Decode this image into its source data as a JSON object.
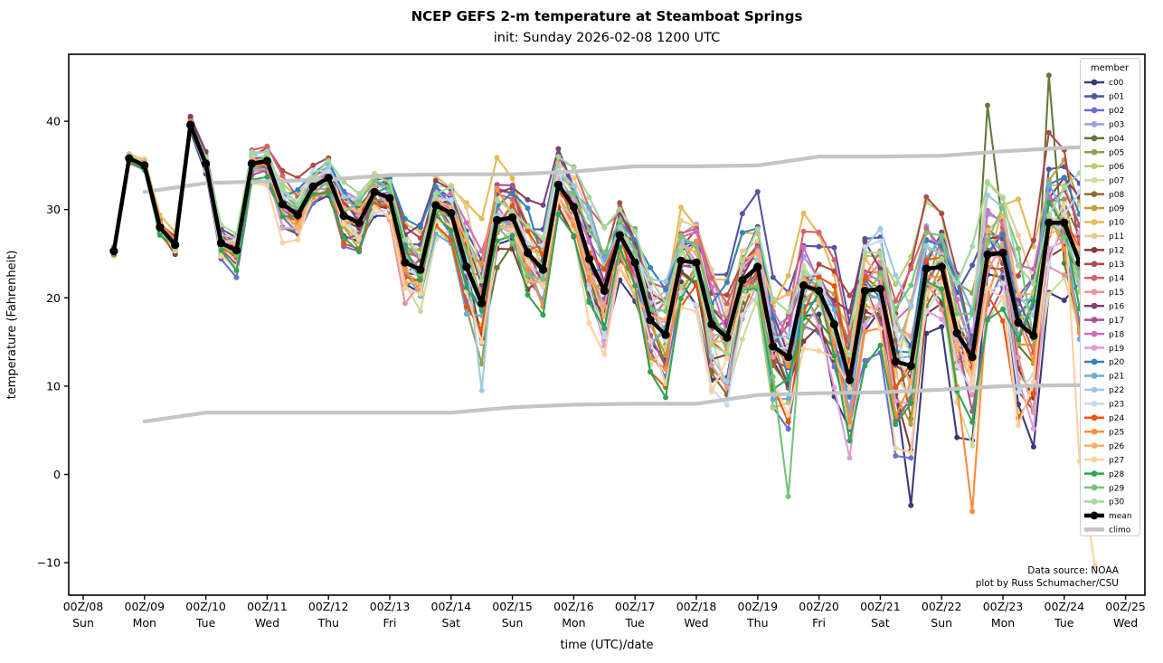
{
  "credits": [
    "Data source: NOAA",
    "plot by Russ Schumacher/CSU"
  ],
  "chart_data": {
    "type": "line",
    "title": "NCEP GEFS 2-m temperature at Steamboat Springs",
    "subtitle": "init: Sunday 2026-02-08 1200 UTC",
    "xlabel": "time (UTC)/date",
    "ylabel": "temperature (Fahrenheit)",
    "grid": false,
    "legend_position": "upper right",
    "legend_title": "member",
    "y_ticks": [
      -10,
      0,
      10,
      20,
      30,
      40
    ],
    "y_range": [
      -13.7,
      47.6
    ],
    "x_range_days": [
      7.76,
      25.32
    ],
    "x_ticks": [
      {
        "day": 8,
        "utc": "00Z/08",
        "dow": "Sun"
      },
      {
        "day": 9,
        "utc": "00Z/09",
        "dow": "Mon"
      },
      {
        "day": 10,
        "utc": "00Z/10",
        "dow": "Tue"
      },
      {
        "day": 11,
        "utc": "00Z/11",
        "dow": "Wed"
      },
      {
        "day": 12,
        "utc": "00Z/12",
        "dow": "Thu"
      },
      {
        "day": 13,
        "utc": "00Z/13",
        "dow": "Fri"
      },
      {
        "day": 14,
        "utc": "00Z/14",
        "dow": "Sat"
      },
      {
        "day": 15,
        "utc": "00Z/15",
        "dow": "Sun"
      },
      {
        "day": 16,
        "utc": "00Z/16",
        "dow": "Mon"
      },
      {
        "day": 17,
        "utc": "00Z/17",
        "dow": "Tue"
      },
      {
        "day": 18,
        "utc": "00Z/18",
        "dow": "Wed"
      },
      {
        "day": 19,
        "utc": "00Z/19",
        "dow": "Thu"
      },
      {
        "day": 20,
        "utc": "00Z/20",
        "dow": "Fri"
      },
      {
        "day": 21,
        "utc": "00Z/21",
        "dow": "Sat"
      },
      {
        "day": 22,
        "utc": "00Z/22",
        "dow": "Sun"
      },
      {
        "day": 23,
        "utc": "00Z/23",
        "dow": "Mon"
      },
      {
        "day": 24,
        "utc": "00Z/24",
        "dow": "Tue"
      },
      {
        "day": 25,
        "utc": "00Z/25",
        "dow": "Wed"
      }
    ],
    "time_start_day": 8.5,
    "time_step_days": 0.25,
    "mean": {
      "name": "mean",
      "color": "#000000",
      "values": [
        25.3,
        35.8,
        35.0,
        28.0,
        26.0,
        39.6,
        35.2,
        26.2,
        25.4,
        35.2,
        35.5,
        30.6,
        29.4,
        32.6,
        33.6,
        29.3,
        28.5,
        32.0,
        31.3,
        24.0,
        23.2,
        30.5,
        29.6,
        23.5,
        19.4,
        28.8,
        29.1,
        25.1,
        23.2,
        32.8,
        30.3,
        24.4,
        20.8,
        27.1,
        24.0,
        17.5,
        15.8,
        24.2,
        24.0,
        17.0,
        15.5,
        22.0,
        23.5,
        14.5,
        13.3,
        21.4,
        20.8,
        17.0,
        10.7,
        20.8,
        21.0,
        12.8,
        12.3,
        23.3,
        23.5,
        16.0,
        13.3,
        24.9,
        25.1,
        17.2,
        15.7,
        28.5,
        28.5,
        24.0,
        21.0
      ]
    },
    "climo": {
      "name": "climo",
      "color": "#c4c4c4",
      "days": [
        9,
        10,
        11,
        12,
        13,
        14,
        15,
        16,
        17,
        18,
        19,
        20,
        21,
        22,
        23,
        24,
        25
      ],
      "upper": [
        32.0,
        33.0,
        33.2,
        33.4,
        33.9,
        34.0,
        34.0,
        34.3,
        34.9,
        34.9,
        35.0,
        36.0,
        36.0,
        36.1,
        36.6,
        37.0,
        37.2
      ],
      "lower": [
        6.0,
        7.0,
        7.0,
        7.0,
        7.0,
        7.0,
        7.6,
        7.9,
        8.0,
        8.0,
        9.0,
        9.2,
        9.3,
        9.6,
        10.0,
        10.1,
        10.1
      ]
    },
    "ensemble_spread_halfwidth": [
      0.6,
      0.8,
      0.8,
      1.0,
      1.0,
      1.0,
      1.5,
      1.8,
      2.0,
      2.0,
      2.2,
      2.5,
      2.8,
      3.0,
      3.0,
      3.2,
      3.5,
      3.5,
      3.8,
      4.0,
      4.2,
      4.5,
      4.5,
      5.5,
      6.0,
      6.0,
      5.0,
      5.0,
      5.5,
      5.5,
      5.0,
      5.5,
      6.0,
      5.5,
      6.0,
      6.5,
      7.0,
      7.0,
      6.5,
      6.5,
      7.0,
      7.0,
      7.0,
      7.5,
      8.0,
      8.0,
      8.0,
      8.0,
      9.0,
      9.0,
      8.5,
      9.0,
      10.0,
      9.0,
      9.0,
      10.0,
      10.5,
      10.0,
      10.0,
      10.5,
      11.0,
      12.0,
      12.0,
      13.0,
      13.0
    ],
    "member_extremes": {
      "c00": {
        "52": -3.5
      },
      "p04": {
        "57": 41.8,
        "61": 45.2
      },
      "p13": {
        "5": 40.4
      },
      "p22": {
        "24": 9.5
      },
      "p25": {
        "56": -4.2
      },
      "p27": {
        "63": 1.5,
        "64": -10.4
      },
      "p29": {
        "44": -2.5
      }
    },
    "members": [
      {
        "name": "c00",
        "color": "#393b79"
      },
      {
        "name": "p01",
        "color": "#5254a3"
      },
      {
        "name": "p02",
        "color": "#6b6ecf"
      },
      {
        "name": "p03",
        "color": "#9c9ede"
      },
      {
        "name": "p04",
        "color": "#637939"
      },
      {
        "name": "p05",
        "color": "#8ca252"
      },
      {
        "name": "p06",
        "color": "#b5cf6b"
      },
      {
        "name": "p07",
        "color": "#cedb9c"
      },
      {
        "name": "p08",
        "color": "#8c6d31"
      },
      {
        "name": "p09",
        "color": "#bd9e39"
      },
      {
        "name": "p10",
        "color": "#e7ba52"
      },
      {
        "name": "p11",
        "color": "#e7cb94"
      },
      {
        "name": "p12",
        "color": "#843c39"
      },
      {
        "name": "p13",
        "color": "#ad494a"
      },
      {
        "name": "p14",
        "color": "#d6616b"
      },
      {
        "name": "p15",
        "color": "#e7969c"
      },
      {
        "name": "p16",
        "color": "#7b4173"
      },
      {
        "name": "p17",
        "color": "#a55194"
      },
      {
        "name": "p18",
        "color": "#ce6dbd"
      },
      {
        "name": "p19",
        "color": "#de9ed6"
      },
      {
        "name": "p20",
        "color": "#3182bd"
      },
      {
        "name": "p21",
        "color": "#6baed6"
      },
      {
        "name": "p22",
        "color": "#9ecae1"
      },
      {
        "name": "p23",
        "color": "#c6dbef"
      },
      {
        "name": "p24",
        "color": "#e6550d"
      },
      {
        "name": "p25",
        "color": "#fd8d3c"
      },
      {
        "name": "p26",
        "color": "#fdae6b"
      },
      {
        "name": "p27",
        "color": "#fdd0a2"
      },
      {
        "name": "p28",
        "color": "#31a354"
      },
      {
        "name": "p29",
        "color": "#74c476"
      },
      {
        "name": "p30",
        "color": "#a1d99b"
      }
    ]
  }
}
